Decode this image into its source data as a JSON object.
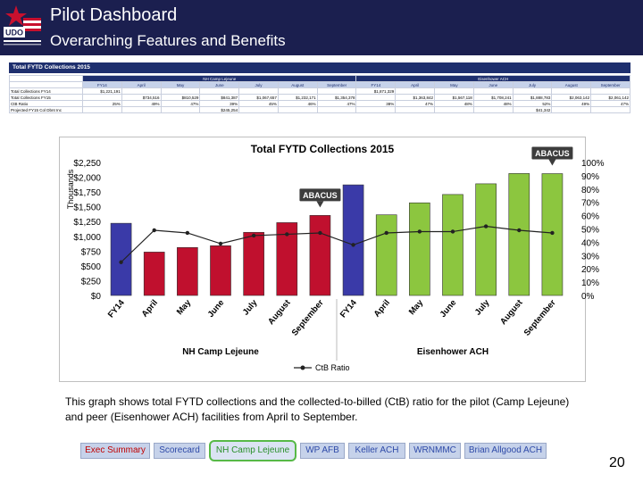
{
  "header": {
    "title": "Pilot Dashboard",
    "subtitle": "Overarching Features and Benefits",
    "logo_text": "UDO",
    "logo_colors": {
      "star": "#c8102e",
      "stripes": "#c8102e",
      "field": "#ffffff"
    }
  },
  "table": {
    "title": "Total FYTD Collections 2015",
    "groups": [
      "NH Camp Lejeune",
      "Eisenhower ACH"
    ],
    "months": [
      "FY14",
      "April",
      "May",
      "June",
      "July",
      "August",
      "September"
    ],
    "rows": [
      {
        "label": "Total Collections FY14",
        "cells": [
          "$1,221,191",
          "",
          "",
          "",
          "",
          "",
          "",
          "$1,871,329",
          "",
          "",
          "",
          "",
          "",
          ""
        ]
      },
      {
        "label": "Total Collections FY15",
        "cells": [
          "",
          "$734,516",
          "$810,529",
          "$841,387",
          "$1,067,657",
          "$1,232,171",
          "$1,354,378",
          "",
          "$1,363,842",
          "$1,567,118",
          "$1,708,241",
          "$1,888,783",
          "$2,063,142",
          "$2,061,142"
        ]
      },
      {
        "label": "CtB Ratio",
        "cells": [
          "25%",
          "49%",
          "47%",
          "39%",
          "45%",
          "46%",
          "47%",
          "38%",
          "47%",
          "48%",
          "48%",
          "52%",
          "49%",
          "47%"
        ]
      },
      {
        "label": "Projected FY15 Col Dbnt Inc",
        "cells": [
          "",
          "",
          "",
          "$245,254",
          "",
          "",
          "",
          "",
          "",
          "",
          "",
          "$41,342",
          "",
          ""
        ]
      }
    ]
  },
  "chart_data": {
    "type": "bar",
    "title": "Total FYTD Collections 2015",
    "categories": [
      "FY14",
      "April",
      "May",
      "June",
      "July",
      "August",
      "September",
      "FY14",
      "April",
      "May",
      "June",
      "July",
      "August",
      "September"
    ],
    "groups": [
      {
        "name": "NH Camp Lejeune",
        "range": [
          0,
          6
        ]
      },
      {
        "name": "Eisenhower ACH",
        "range": [
          7,
          13
        ]
      }
    ],
    "series": [
      {
        "name": "Total FYTD Collections",
        "values": [
          1221,
          734,
          811,
          841,
          1068,
          1232,
          1354,
          1871,
          1364,
          1567,
          1708,
          1889,
          2063,
          2061
        ]
      },
      {
        "name": "CtB Ratio",
        "values": [
          25,
          49,
          47,
          39,
          45,
          46,
          47,
          38,
          47,
          48,
          48,
          52,
          49,
          47
        ]
      }
    ],
    "bar_colors": [
      "#3a3aa8",
      "#c0102e",
      "#c0102e",
      "#c0102e",
      "#c0102e",
      "#c0102e",
      "#c0102e",
      "#3a3aa8",
      "#8cc63f",
      "#8cc63f",
      "#8cc63f",
      "#8cc63f",
      "#8cc63f",
      "#8cc63f"
    ],
    "ylabel": "Thousands",
    "ylim": [
      0,
      2250
    ],
    "y_ticks": [
      "$0",
      "$250",
      "$500",
      "$750",
      "$1,000",
      "$1,250",
      "$1,500",
      "$1,750",
      "$2,000",
      "$2,250"
    ],
    "y2lim": [
      0,
      100
    ],
    "y2_ticks": [
      "0%",
      "10%",
      "20%",
      "30%",
      "40%",
      "50%",
      "60%",
      "70%",
      "80%",
      "90%",
      "100%"
    ],
    "legend": {
      "label": "CtB Ratio",
      "position": "bottom"
    },
    "annotations": [
      {
        "text": "ABACUS",
        "target_index": 6
      },
      {
        "text": "ABACUS",
        "target_index": 13
      }
    ],
    "grid": false
  },
  "caption": "This graph shows total FYTD collections and the collected-to-billed (CtB) ratio for the pilot (Camp Lejeune) and peer (Eisenhower ACH) facilities from April to September.",
  "nav": {
    "tabs": [
      "Exec Summary",
      "Scorecard",
      "NH Camp Lejeune",
      "WP AFB",
      "Keller ACH",
      "WRNMMC",
      "Brian Allgood ACH"
    ],
    "active": "NH Camp Lejeune"
  },
  "page_number": "20"
}
